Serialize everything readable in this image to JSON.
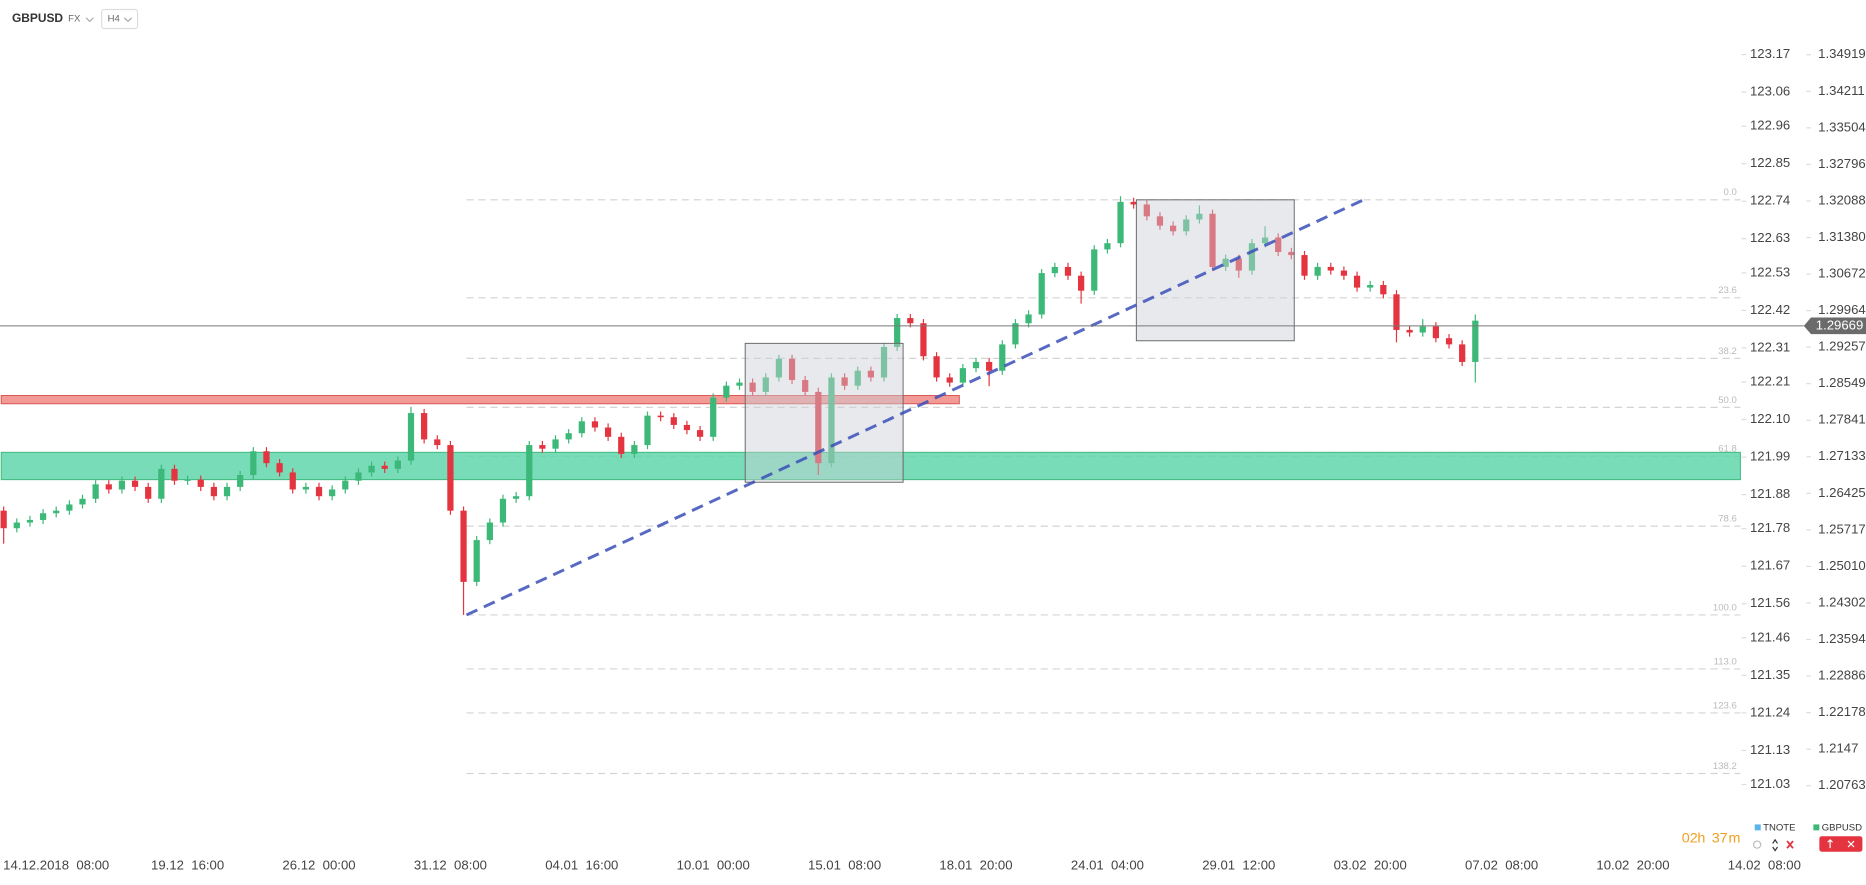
{
  "header": {
    "symbol": "GBPUSD",
    "market": "FX",
    "timeframe": "H4"
  },
  "chart_data": {
    "type": "candlestick",
    "categories": [
      null,
      null,
      null,
      null,
      "14.12.2018  08:00",
      null,
      null,
      null,
      null,
      null,
      null,
      null,
      null,
      null,
      "19.12  16:00",
      null,
      null,
      null,
      null,
      null,
      null,
      null,
      null,
      null,
      "26.12  00:00",
      null,
      null,
      null,
      null,
      null,
      null,
      null,
      null,
      null,
      "31.12  08:00",
      null,
      null,
      null,
      null,
      null,
      null,
      null,
      null,
      null,
      "04.01  16:00",
      null,
      null,
      null,
      null,
      null,
      null,
      null,
      null,
      null,
      "10.01  00:00",
      null,
      null,
      null,
      null,
      null,
      null,
      null,
      null,
      null,
      "15.01  08:00",
      null,
      null,
      null,
      null,
      null,
      null,
      null,
      null,
      null,
      "18.01  20:00",
      null,
      null,
      null,
      null,
      null,
      null,
      null,
      null,
      null,
      "24.01  04:00",
      null,
      null,
      null,
      null,
      null,
      null,
      null,
      null,
      null,
      "29.01  12:00",
      null,
      null,
      null,
      null,
      null,
      null,
      null,
      null,
      null,
      "03.02  20:00",
      null,
      null,
      null,
      null,
      null,
      null,
      null,
      null,
      null,
      "07.02  08:00",
      null,
      null,
      null,
      null,
      null,
      null,
      null,
      null,
      null,
      "10.02  20:00",
      null,
      null,
      null,
      null,
      null,
      null,
      null,
      null,
      null,
      "14.02  08:00"
    ],
    "open": [
      1.2609,
      1.2575,
      1.2586,
      1.2591,
      1.2604,
      1.2609,
      1.2621,
      1.2632,
      1.266,
      1.265,
      1.2667,
      1.2655,
      1.2632,
      1.269,
      1.2667,
      1.2669,
      1.2655,
      1.2637,
      1.2655,
      1.2678,
      1.2724,
      1.2701,
      1.2683,
      1.265,
      1.2655,
      1.2637,
      1.265,
      1.2667,
      1.2683,
      1.2696,
      1.269,
      1.2706,
      1.2798,
      1.2747,
      1.2736,
      1.2609,
      1.2471,
      1.2552,
      1.2586,
      1.2632,
      1.2637,
      1.2736,
      1.2729,
      1.2747,
      1.2759,
      1.2782,
      1.277,
      1.2752,
      1.2719,
      1.2736,
      1.2793,
      1.279,
      1.2775,
      1.2765,
      1.2752,
      1.2828,
      1.2851,
      1.2857,
      1.2839,
      1.2867,
      1.2903,
      1.2862,
      1.2839,
      1.2701,
      1.2867,
      1.2851,
      1.288,
      1.2867,
      1.2926,
      1.2982,
      1.2972,
      1.2908,
      1.2867,
      1.2857,
      1.2885,
      1.2897,
      1.288,
      1.2931,
      1.2972,
      1.2989,
      1.3069,
      1.3081,
      1.3064,
      1.3035,
      1.3115,
      1.3127,
      1.3207,
      1.3202,
      1.3179,
      1.3161,
      1.315,
      1.3173,
      1.3184,
      1.3081,
      1.3097,
      1.3074,
      1.3127,
      1.3138,
      1.311,
      1.3104,
      1.3064,
      1.3081,
      1.3074,
      1.3064,
      1.3041,
      1.3046,
      1.3028,
      1.2959,
      1.2954,
      1.2966,
      1.2943,
      1.2931,
      1.2897,
      null,
      null,
      null,
      null,
      null,
      null,
      null,
      null,
      null,
      null,
      null,
      null,
      null,
      null,
      null,
      null,
      null,
      null,
      null,
      null,
      null,
      null
    ],
    "high": [
      1.2617,
      1.2594,
      1.2599,
      1.2612,
      1.2617,
      1.2629,
      1.264,
      1.2668,
      1.2668,
      1.2675,
      1.2675,
      1.2663,
      1.2698,
      1.2698,
      1.2677,
      1.2677,
      1.2663,
      1.2663,
      1.2686,
      1.2732,
      1.2732,
      1.2709,
      1.2691,
      1.2663,
      1.2663,
      1.2658,
      1.2675,
      1.2691,
      1.2704,
      1.2704,
      1.2714,
      1.281,
      1.2806,
      1.2755,
      1.2744,
      1.2617,
      1.256,
      1.2594,
      1.264,
      1.2645,
      1.2744,
      1.2744,
      1.2755,
      1.2767,
      1.279,
      1.279,
      1.2778,
      1.276,
      1.2744,
      1.2801,
      1.2801,
      1.2798,
      1.2783,
      1.2773,
      1.2836,
      1.2859,
      1.2865,
      1.2865,
      1.2875,
      1.2911,
      1.2911,
      1.287,
      1.2847,
      1.2875,
      1.2875,
      1.2888,
      1.2888,
      1.2934,
      1.299,
      1.299,
      1.298,
      1.2916,
      1.2875,
      1.2893,
      1.2905,
      1.2905,
      1.2939,
      1.298,
      1.2997,
      1.3077,
      1.3089,
      1.3089,
      1.3072,
      1.3123,
      1.3135,
      1.3218,
      1.3215,
      1.321,
      1.3187,
      1.3169,
      1.3181,
      1.32,
      1.3192,
      1.3105,
      1.3105,
      1.3135,
      1.316,
      1.3146,
      1.3118,
      1.3112,
      1.3089,
      1.3089,
      1.3082,
      1.3072,
      1.3054,
      1.3054,
      1.3036,
      1.2967,
      1.298,
      1.2974,
      1.2951,
      1.2939,
      1.2989,
      null,
      null,
      null,
      null,
      null,
      null,
      null,
      null,
      null,
      null,
      null,
      null,
      null,
      null,
      null,
      null,
      null,
      null,
      null,
      null,
      null,
      null
    ],
    "low": [
      1.2545,
      1.2567,
      1.2578,
      1.2583,
      1.2596,
      1.2601,
      1.2613,
      1.2624,
      1.2642,
      1.2642,
      1.2647,
      1.2624,
      1.2624,
      1.2659,
      1.2659,
      1.2647,
      1.2629,
      1.2629,
      1.2647,
      1.267,
      1.2693,
      1.2675,
      1.2642,
      1.2642,
      1.2629,
      1.2629,
      1.2642,
      1.2659,
      1.2675,
      1.2682,
      1.2682,
      1.2698,
      1.2739,
      1.2728,
      1.2601,
      1.2407,
      1.2463,
      1.2544,
      1.2578,
      1.2624,
      1.2629,
      1.2721,
      1.2721,
      1.2739,
      1.2751,
      1.2762,
      1.2744,
      1.2711,
      1.2711,
      1.2728,
      1.2782,
      1.2767,
      1.2757,
      1.2744,
      1.2744,
      1.282,
      1.2843,
      1.2831,
      1.2831,
      1.2859,
      1.2854,
      1.2831,
      1.2678,
      1.2693,
      1.2843,
      1.2843,
      1.2859,
      1.2859,
      1.2918,
      1.2964,
      1.29,
      1.2859,
      1.2849,
      1.2849,
      1.2877,
      1.285,
      1.2872,
      1.2923,
      1.2964,
      1.2981,
      1.3061,
      1.3056,
      1.301,
      1.3027,
      1.3107,
      1.3119,
      1.3194,
      1.3171,
      1.3153,
      1.3142,
      1.3142,
      1.3165,
      1.3073,
      1.3073,
      1.306,
      1.3066,
      1.3119,
      1.3102,
      1.3096,
      1.3056,
      1.3056,
      1.3066,
      1.3056,
      1.3033,
      1.3033,
      1.302,
      1.2935,
      1.2946,
      1.2946,
      1.2935,
      1.2923,
      1.2889,
      1.2857,
      null,
      null,
      null,
      null,
      null,
      null,
      null,
      null,
      null,
      null,
      null,
      null,
      null,
      null,
      null,
      null,
      null,
      null,
      null,
      null,
      null,
      null
    ],
    "close": [
      1.2575,
      1.2586,
      1.2591,
      1.2604,
      1.2609,
      1.2621,
      1.2632,
      1.266,
      1.265,
      1.2667,
      1.2655,
      1.2632,
      1.269,
      1.2667,
      1.2669,
      1.2655,
      1.2637,
      1.2655,
      1.2678,
      1.2724,
      1.2701,
      1.2683,
      1.265,
      1.2655,
      1.2637,
      1.265,
      1.2667,
      1.2683,
      1.2696,
      1.269,
      1.2706,
      1.2798,
      1.2747,
      1.2736,
      1.2609,
      1.2471,
      1.2552,
      1.2586,
      1.2632,
      1.2637,
      1.2736,
      1.2729,
      1.2747,
      1.2759,
      1.2782,
      1.277,
      1.2752,
      1.2719,
      1.2736,
      1.2793,
      1.279,
      1.2775,
      1.2765,
      1.2752,
      1.2828,
      1.2851,
      1.2857,
      1.2839,
      1.2867,
      1.2903,
      1.2862,
      1.2839,
      1.2701,
      1.2867,
      1.2851,
      1.288,
      1.2867,
      1.2926,
      1.2982,
      1.2972,
      1.2908,
      1.2867,
      1.2857,
      1.2885,
      1.2897,
      1.288,
      1.2931,
      1.2972,
      1.2989,
      1.3069,
      1.3081,
      1.3064,
      1.3035,
      1.3115,
      1.3127,
      1.3207,
      1.3202,
      1.3179,
      1.3161,
      1.315,
      1.3173,
      1.3184,
      1.3081,
      1.3097,
      1.3074,
      1.3127,
      1.3138,
      1.311,
      1.3104,
      1.3064,
      1.3081,
      1.3074,
      1.3064,
      1.3041,
      1.3046,
      1.3028,
      1.2959,
      1.2954,
      1.2966,
      1.2943,
      1.2931,
      1.2897,
      1.2977,
      null,
      null,
      null,
      null,
      null,
      null,
      null,
      null,
      null,
      null,
      null,
      null,
      null,
      null,
      null,
      null,
      null,
      null,
      null,
      null,
      null,
      null
    ],
    "up_color": "#3cb878",
    "down_color": "#e3343f",
    "ylim": [
      1.1953,
      1.3598
    ],
    "yticks": [
      1.34919,
      1.34211,
      1.33504,
      1.32796,
      1.32088,
      {
        "value": 1.3138,
        "label": "1.31380"
      },
      1.30672,
      1.29964,
      1.29257,
      1.28549,
      1.27841,
      1.27133,
      1.26425,
      1.25717,
      {
        "value": 1.2501,
        "label": "1.25010"
      },
      1.24302,
      1.23594,
      1.22886,
      1.22178,
      1.2147,
      1.20763
    ],
    "y2lim": [
      120.84,
      123.33
    ],
    "y2ticks": [
      123.17,
      123.06,
      122.96,
      122.85,
      122.74,
      122.63,
      122.53,
      122.42,
      122.31,
      122.21,
      {
        "value": 122.1,
        "label": "122.10"
      },
      121.99,
      121.88,
      121.78,
      121.67,
      121.56,
      121.46,
      121.35,
      121.24,
      121.13,
      121.03
    ],
    "current_price": 1.29669,
    "zones": [
      {
        "low": 1.2816,
        "high": 1.2832,
        "color": "#ee8884"
      },
      {
        "low": 1.2669,
        "high": 1.2722,
        "color": "#5fd6aa"
      }
    ],
    "boxes": [
      {
        "low": 1.2664,
        "high": 1.2933
      },
      {
        "low": 1.2938,
        "high": 1.3211
      }
    ],
    "trendline": {
      "values": [
        1.2407,
        1.3211
      ],
      "color": "#3a4fb8"
    },
    "fibonacci": {
      "high": 1.3211,
      "low": 1.2407,
      "levels": [
        {
          "value": 0,
          "label": "0.0"
        },
        23.6,
        38.2,
        {
          "value": 50,
          "label": "50.0"
        },
        61.8,
        78.6,
        {
          "value": 100,
          "label": "100.0"
        },
        {
          "value": 113,
          "label": "113.0"
        },
        123.6,
        138.2
      ]
    },
    "legend": [
      {
        "name": "TNOTE",
        "color": "#5ab4ea"
      },
      {
        "name": "GBPUSD",
        "color": "#3cb878"
      }
    ],
    "countdown": [
      "02",
      "h",
      "37",
      "m"
    ]
  }
}
